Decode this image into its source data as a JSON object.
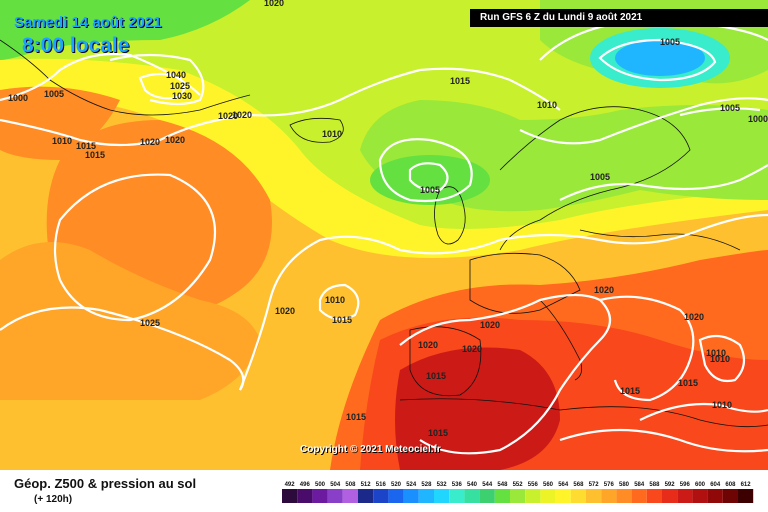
{
  "header": {
    "date_label": "Samedi 14 août 2021",
    "time_label": "8:00 locale",
    "run_info": "Run GFS 6 Z du Lundi 9 août 2021"
  },
  "copyright": "Copyright © 2021 Meteociel.fr",
  "legend": {
    "title": "Géop. Z500 & pression au sol",
    "subtitle": "(+ 120h)",
    "scale_values": [
      "492",
      "496",
      "500",
      "504",
      "508",
      "512",
      "516",
      "520",
      "524",
      "528",
      "532",
      "536",
      "540",
      "544",
      "548",
      "552",
      "556",
      "560",
      "564",
      "568",
      "572",
      "576",
      "580",
      "584",
      "588",
      "592",
      "596",
      "600",
      "604",
      "608",
      "612"
    ],
    "scale_colors": [
      "#2c0a3c",
      "#4a0c6a",
      "#6c1aa0",
      "#8a3fc8",
      "#b060e0",
      "#1b2a8a",
      "#1c44c8",
      "#1a66ee",
      "#1a90ff",
      "#20b6ff",
      "#20d6ff",
      "#38eccc",
      "#36e0a0",
      "#3cd070",
      "#64e040",
      "#9ae83a",
      "#c8f02c",
      "#ecf428",
      "#fff42a",
      "#ffdc30",
      "#ffc030",
      "#ffa628",
      "#ff8c24",
      "#ff6a1e",
      "#f8481c",
      "#e82c1a",
      "#cc1a16",
      "#b01010",
      "#900808",
      "#6e0404",
      "#3c0000"
    ]
  },
  "isobars": [
    {
      "label": "1000",
      "id": "l1"
    },
    {
      "label": "1005",
      "id": "l2"
    },
    {
      "label": "1010",
      "id": "l3"
    },
    {
      "label": "1015",
      "id": "l4"
    },
    {
      "label": "1020",
      "id": "l5"
    },
    {
      "label": "1020",
      "id": "l6"
    },
    {
      "label": "1020",
      "id": "l7"
    },
    {
      "label": "1040",
      "id": "l8"
    },
    {
      "label": "1025",
      "id": "l9"
    },
    {
      "label": "1030",
      "id": "l10"
    },
    {
      "label": "1015",
      "id": "l11"
    },
    {
      "label": "1010",
      "id": "l12"
    },
    {
      "label": "1005",
      "id": "l13"
    },
    {
      "label": "1005",
      "id": "l14"
    },
    {
      "label": "1005",
      "id": "l15"
    },
    {
      "label": "1000",
      "id": "l16"
    },
    {
      "label": "1005",
      "id": "l17"
    },
    {
      "label": "1025",
      "id": "l18"
    },
    {
      "label": "1020",
      "id": "l19"
    },
    {
      "label": "1010",
      "id": "l20"
    },
    {
      "label": "1015",
      "id": "l21"
    },
    {
      "label": "1020",
      "id": "l22"
    },
    {
      "label": "1020",
      "id": "l23"
    },
    {
      "label": "1020",
      "id": "l24"
    },
    {
      "label": "1020",
      "id": "l25"
    },
    {
      "label": "1015",
      "id": "l26"
    },
    {
      "label": "1015",
      "id": "l27"
    },
    {
      "label": "1015",
      "id": "l28"
    },
    {
      "label": "1010",
      "id": "l29"
    },
    {
      "label": "1010",
      "id": "l30"
    },
    {
      "label": "1015",
      "id": "l31"
    },
    {
      "label": "1010",
      "id": "l32"
    },
    {
      "label": "1010",
      "id": "l33"
    },
    {
      "label": "1020",
      "id": "l34"
    },
    {
      "label": "1015",
      "id": "l35"
    },
    {
      "label": "1020",
      "id": "l36"
    },
    {
      "label": "1020",
      "id": "l37"
    },
    {
      "label": "1015",
      "id": "l38"
    }
  ]
}
